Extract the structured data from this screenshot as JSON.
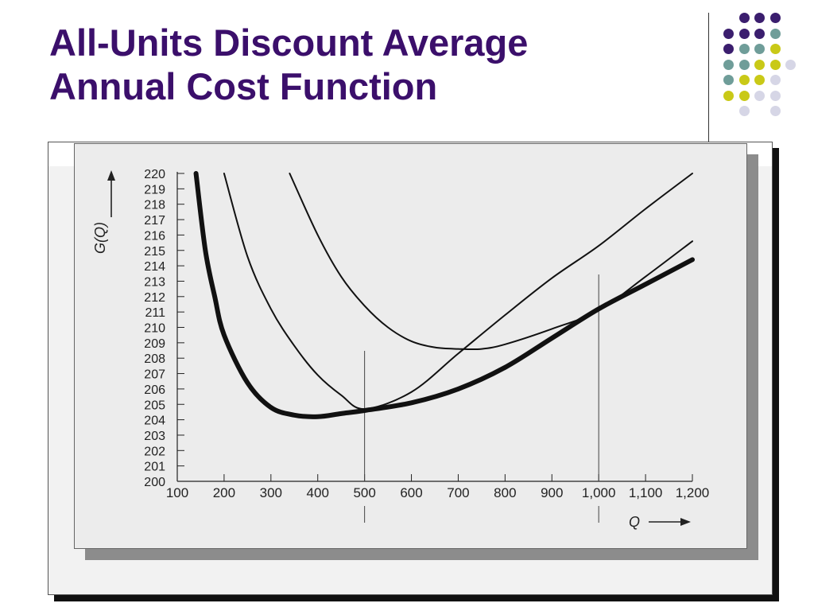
{
  "slide": {
    "title_line1": "All-Units Discount Average",
    "title_line2": "Annual Cost Function"
  },
  "decor": {
    "title_color": "#3b0f6b",
    "dot_colors": {
      "purple": "#3b1e6e",
      "teal": "#6f9d99",
      "lime": "#c9c917",
      "lavender": "#d6d6e6"
    },
    "dot_grid": [
      [
        "",
        "purple",
        "purple",
        "purple"
      ],
      [
        "purple",
        "purple",
        "purple",
        "teal"
      ],
      [
        "purple",
        "teal",
        "teal",
        "lime"
      ],
      [
        "teal",
        "teal",
        "lime",
        "lime",
        "lavender"
      ],
      [
        "teal",
        "lime",
        "lime",
        "lavender"
      ],
      [
        "lime",
        "lime",
        "lavender",
        "lavender"
      ],
      [
        "",
        "lavender",
        "",
        "lavender"
      ]
    ]
  },
  "chart_data": {
    "type": "line",
    "xlabel": "Q",
    "ylabel": "G(Q)",
    "xlim": [
      100,
      1200
    ],
    "ylim": [
      200,
      220
    ],
    "x_ticks": [
      100,
      200,
      300,
      400,
      500,
      600,
      700,
      800,
      900,
      1000,
      1100,
      1200
    ],
    "x_tick_labels": [
      "100",
      "200",
      "300",
      "400",
      "500",
      "600",
      "700",
      "800",
      "900",
      "1,000",
      "1,100",
      "1,200"
    ],
    "y_ticks": [
      200,
      201,
      202,
      203,
      204,
      205,
      206,
      207,
      208,
      209,
      210,
      211,
      212,
      213,
      214,
      215,
      216,
      217,
      218,
      219,
      220
    ],
    "grid": false,
    "breakpoints": [
      500,
      1000
    ],
    "series": [
      {
        "style": "thin",
        "x": [
          200,
          250,
          300,
          350,
          400,
          450,
          500,
          600,
          700,
          800,
          900,
          1000,
          1100,
          1200
        ],
        "y": [
          220.0,
          214.6,
          211.2,
          208.8,
          206.9,
          205.6,
          204.7,
          205.8,
          208.3,
          210.8,
          213.2,
          215.3,
          217.7,
          220.0
        ]
      },
      {
        "style": "thin",
        "x": [
          340,
          400,
          450,
          500,
          550,
          600,
          650,
          700,
          750,
          800,
          900,
          1000,
          1100,
          1200
        ],
        "y": [
          220.0,
          216.0,
          213.3,
          211.4,
          210.0,
          209.1,
          208.7,
          208.6,
          208.6,
          208.9,
          209.9,
          211.1,
          213.3,
          215.6
        ]
      },
      {
        "style": "thick",
        "x": [
          140,
          160,
          180,
          200,
          250,
          300,
          350,
          400,
          450,
          500,
          600,
          700,
          800,
          900,
          1000,
          1100,
          1200
        ],
        "y": [
          220.0,
          215.0,
          212.0,
          209.5,
          206.4,
          204.8,
          204.3,
          204.2,
          204.4,
          204.6,
          205.1,
          206.0,
          207.4,
          209.3,
          211.2,
          212.8,
          214.4
        ]
      }
    ]
  }
}
